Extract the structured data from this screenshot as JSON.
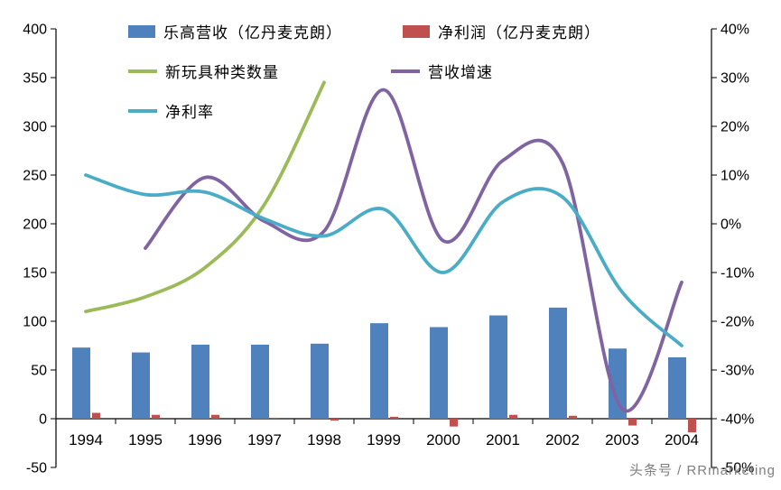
{
  "watermark": "头条号 / RRmarketing",
  "chart_data": {
    "type": "combo",
    "title": "",
    "categories": [
      "1994",
      "1995",
      "1996",
      "1997",
      "1998",
      "1999",
      "2000",
      "2001",
      "2002",
      "2003",
      "2004"
    ],
    "left_axis": {
      "min": -50,
      "max": 400,
      "tick_step": 50,
      "tick_labels": [
        "400",
        "350",
        "300",
        "250",
        "200",
        "150",
        "100",
        "50",
        "0",
        "-50"
      ]
    },
    "right_axis": {
      "min": -50,
      "max": 40,
      "tick_step": 10,
      "tick_labels": [
        "40%",
        "30%",
        "20%",
        "10%",
        "0%",
        "-10%",
        "-20%",
        "-30%",
        "-40%",
        "-50%"
      ]
    },
    "grid": false,
    "legend_position": "top-left",
    "series": [
      {
        "key": "lego-revenue",
        "name": "乐高营收（亿丹麦克朗）",
        "type": "bar",
        "axis": "left",
        "color": "#4F81BD",
        "values": [
          73,
          68,
          76,
          76,
          77,
          98,
          94,
          106,
          114,
          72,
          63
        ]
      },
      {
        "key": "net-profit",
        "name": "净利润（亿丹麦克朗）",
        "type": "bar",
        "axis": "left",
        "color": "#C0504D",
        "values": [
          6,
          4,
          4,
          1,
          -2,
          2,
          -8,
          4,
          3,
          -7,
          -14
        ]
      },
      {
        "key": "new-toy-types",
        "name": "新玩具种类数量",
        "type": "line",
        "axis": "left",
        "color": "#9BBB59",
        "values": [
          110,
          125,
          155,
          220,
          345,
          null,
          null,
          null,
          null,
          null,
          null
        ]
      },
      {
        "key": "revenue-growth",
        "name": "营收增速",
        "type": "line",
        "axis": "right",
        "color": "#8064A2",
        "values": [
          null,
          -5,
          9.5,
          0.5,
          -1.5,
          27.5,
          -3.5,
          13,
          12.5,
          -38,
          -12
        ]
      },
      {
        "key": "net-margin",
        "name": "净利率",
        "type": "line",
        "axis": "right",
        "color": "#4BACC6",
        "values": [
          10,
          6,
          6.5,
          1,
          -2.5,
          3,
          -10,
          4.5,
          5.5,
          -14,
          -25
        ]
      }
    ]
  }
}
